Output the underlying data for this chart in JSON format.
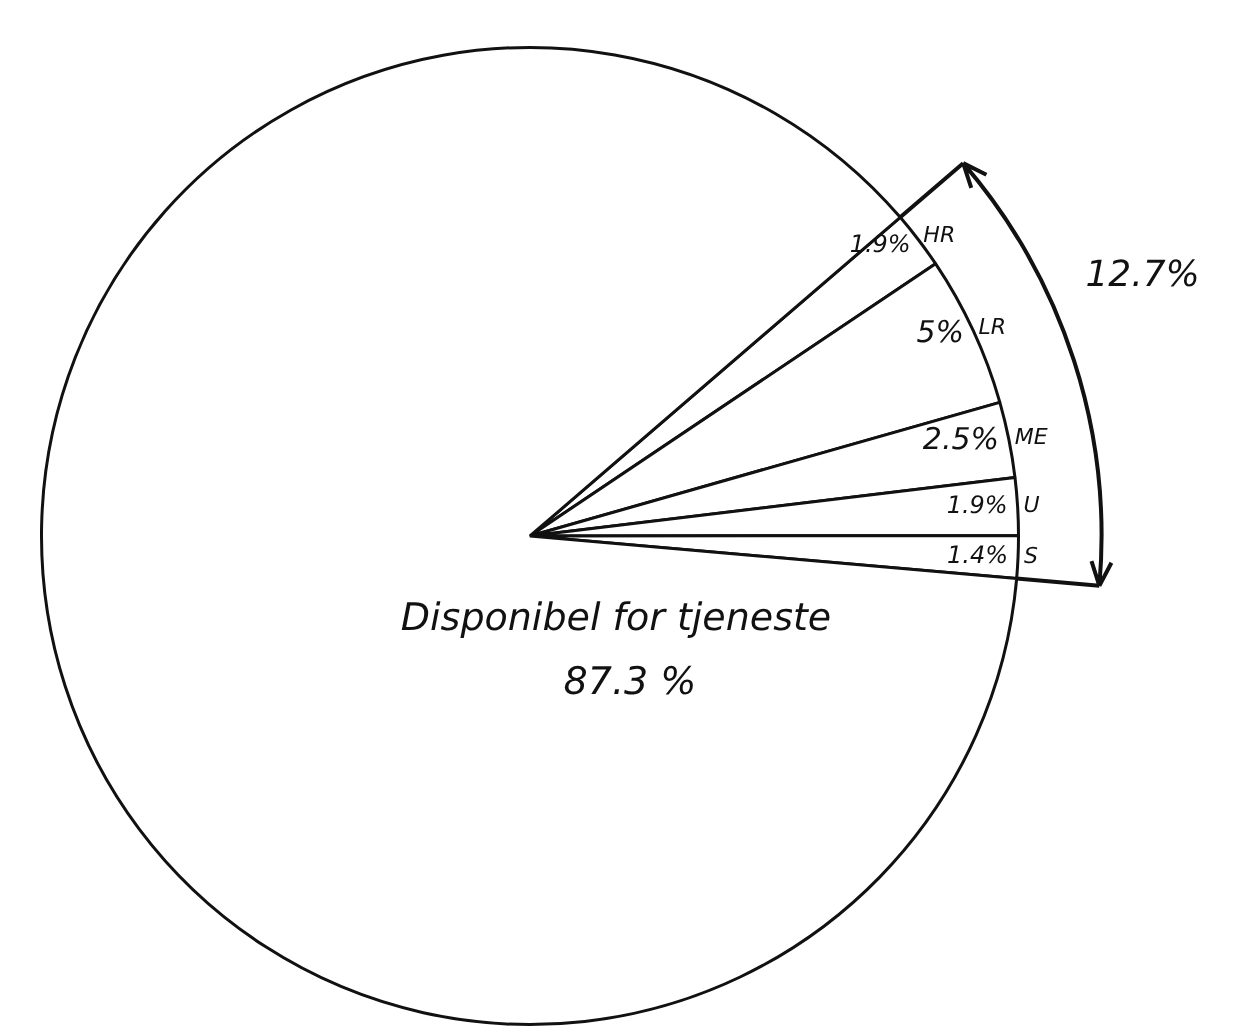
{
  "chart_data": {
    "type": "pie",
    "categories": [
      "HR",
      "LR",
      "ME",
      "U",
      "S",
      "Disponibel for tjeneste"
    ],
    "values": [
      1.9,
      5,
      2.5,
      1.9,
      1.4,
      87.3
    ],
    "colors": [
      "#ffffff",
      "#ffffff",
      "#ffffff",
      "#ffffff",
      "#ffffff",
      "#ffffff"
    ],
    "value_labels": [
      "1.9%",
      "5%",
      "2.5%",
      "1.9%",
      "1.4%",
      "87.3 %"
    ],
    "annotations": [
      "12.7%"
    ],
    "legend": false
  }
}
